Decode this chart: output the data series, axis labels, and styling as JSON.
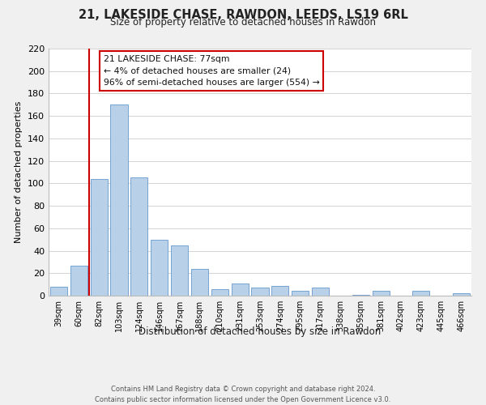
{
  "title": "21, LAKESIDE CHASE, RAWDON, LEEDS, LS19 6RL",
  "subtitle": "Size of property relative to detached houses in Rawdon",
  "xlabel": "Distribution of detached houses by size in Rawdon",
  "ylabel": "Number of detached properties",
  "bar_labels": [
    "39sqm",
    "60sqm",
    "82sqm",
    "103sqm",
    "124sqm",
    "146sqm",
    "167sqm",
    "188sqm",
    "210sqm",
    "231sqm",
    "253sqm",
    "274sqm",
    "295sqm",
    "317sqm",
    "338sqm",
    "359sqm",
    "381sqm",
    "402sqm",
    "423sqm",
    "445sqm",
    "466sqm"
  ],
  "bar_values": [
    8,
    27,
    104,
    170,
    105,
    50,
    45,
    24,
    6,
    11,
    7,
    9,
    4,
    7,
    0,
    1,
    4,
    0,
    4,
    0,
    2
  ],
  "bar_color": "#b8d0e8",
  "bar_edge_color": "#6699cc",
  "vline_color": "#cc0000",
  "vline_pos": 1.5,
  "ylim": [
    0,
    220
  ],
  "yticks": [
    0,
    20,
    40,
    60,
    80,
    100,
    120,
    140,
    160,
    180,
    200,
    220
  ],
  "annotation_box_text_line1": "21 LAKESIDE CHASE: 77sqm",
  "annotation_box_text_line2": "← 4% of detached houses are smaller (24)",
  "annotation_box_text_line3": "96% of semi-detached houses are larger (554) →",
  "annotation_box_color": "#ffffff",
  "annotation_box_edge_color": "#cc0000",
  "footer_line1": "Contains HM Land Registry data © Crown copyright and database right 2024.",
  "footer_line2": "Contains public sector information licensed under the Open Government Licence v3.0.",
  "bg_color": "#f0f0f0",
  "plot_bg_color": "#ffffff",
  "grid_color": "#cccccc"
}
